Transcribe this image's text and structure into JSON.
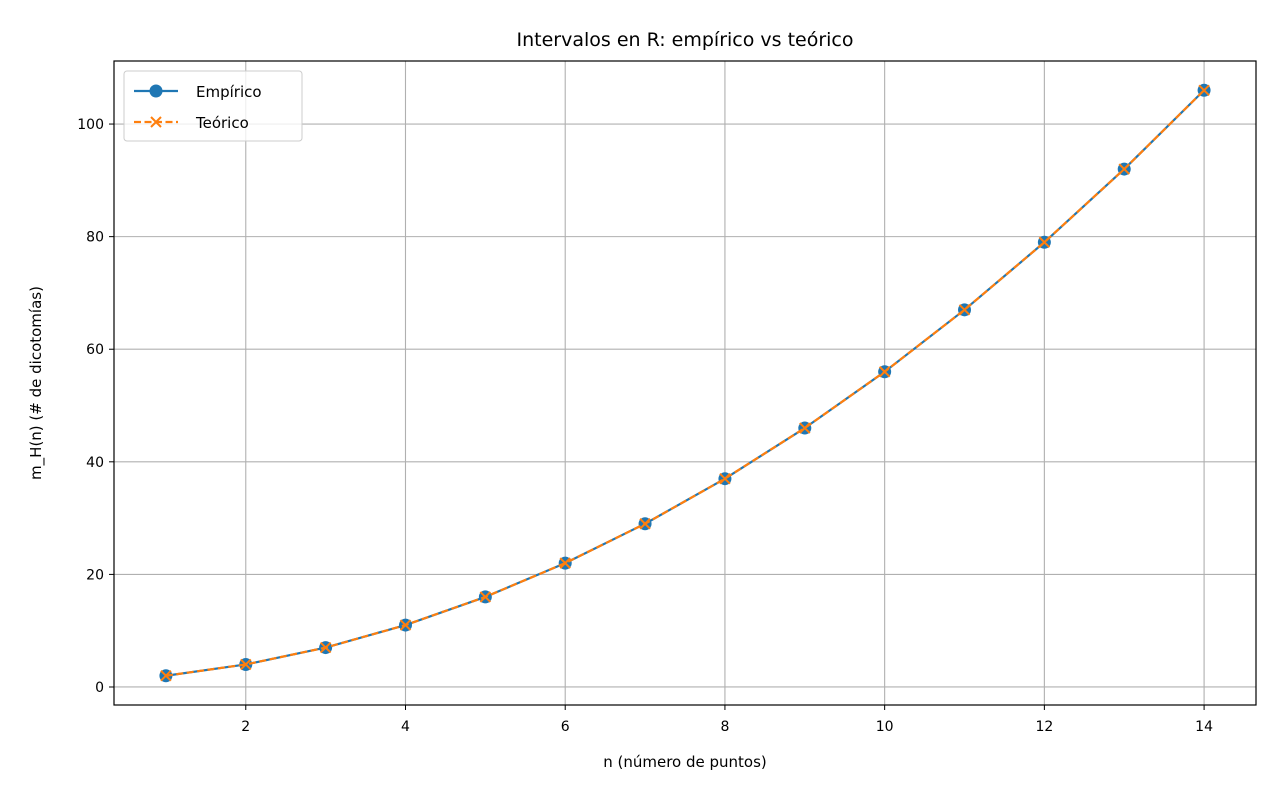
{
  "chart_data": {
    "type": "line",
    "title": "Intervalos en R: empírico vs teórico",
    "xlabel": "n (número de puntos)",
    "ylabel": "m_H(n) (# de dicotomías)",
    "xlim": [
      0.35,
      14.65
    ],
    "ylim": [
      -3.2,
      111.2
    ],
    "xticks": [
      2,
      4,
      6,
      8,
      10,
      12,
      14
    ],
    "yticks": [
      0,
      20,
      40,
      60,
      80,
      100
    ],
    "grid": true,
    "legend_position": "top-left",
    "x": [
      1,
      2,
      3,
      4,
      5,
      6,
      7,
      8,
      9,
      10,
      11,
      12,
      13,
      14
    ],
    "series": [
      {
        "name": "Empírico",
        "values": [
          2,
          4,
          7,
          11,
          16,
          22,
          29,
          37,
          46,
          56,
          67,
          79,
          92,
          106
        ],
        "color": "#1f77b4",
        "line_style": "solid",
        "marker": "circle"
      },
      {
        "name": "Teórico",
        "values": [
          2,
          4,
          7,
          11,
          16,
          22,
          29,
          37,
          46,
          56,
          67,
          79,
          92,
          106
        ],
        "color": "#ff7f0e",
        "line_style": "dashed",
        "marker": "x"
      }
    ]
  }
}
